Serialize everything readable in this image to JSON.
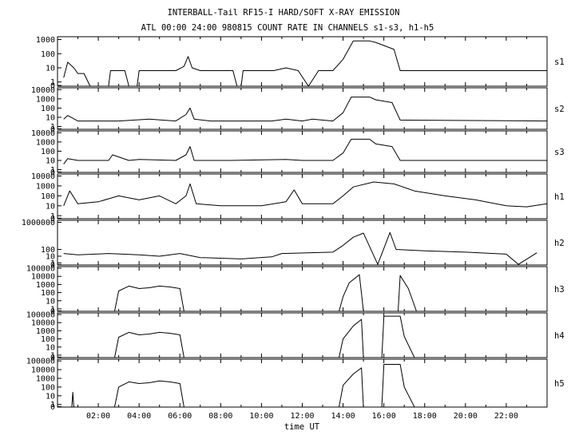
{
  "chart_data": {
    "type": "line",
    "title": "INTERBALL-Tail RF15-I HARD/SOFT X-RAY EMISSION",
    "subtitle": "ATL 00:00 24:00 980815  COUNT RATE IN CHANNELS s1-s3, h1-h5",
    "xlabel": "time UT",
    "xlim": [
      0,
      24
    ],
    "xticks": [
      "02:00",
      "04:00",
      "06:00",
      "08:00",
      "10:00",
      "12:00",
      "14:00",
      "16:00",
      "18:00",
      "20:00",
      "22:00"
    ],
    "y_scale": "log",
    "panels": [
      {
        "name": "s1",
        "ylim_exp": [
          -0.3,
          3.2
        ],
        "yticks": [
          "1000",
          "100",
          "10",
          "1",
          "0"
        ],
        "ytick_exp": [
          3,
          2,
          1,
          0,
          -0.25
        ],
        "series": [
          [
            0.3,
            0.3
          ],
          [
            0.5,
            1.4
          ],
          [
            0.8,
            1.0
          ],
          [
            1.0,
            0.6
          ],
          [
            1.3,
            0.6
          ],
          [
            1.6,
            -1
          ],
          [
            2.5,
            -1
          ],
          [
            2.6,
            0.8
          ],
          [
            3.3,
            0.8
          ],
          [
            3.5,
            -1
          ],
          [
            3.9,
            -1
          ],
          [
            4.0,
            0.8
          ],
          [
            5.8,
            0.8
          ],
          [
            6.2,
            1.1
          ],
          [
            6.4,
            1.8
          ],
          [
            6.6,
            1.0
          ],
          [
            7.0,
            0.8
          ],
          [
            8.6,
            0.8
          ],
          [
            8.8,
            -1
          ],
          [
            9.0,
            -1
          ],
          [
            9.1,
            0.8
          ],
          [
            10.6,
            0.8
          ],
          [
            11.2,
            1.0
          ],
          [
            11.8,
            0.8
          ],
          [
            12.3,
            -1
          ],
          [
            12.8,
            0.8
          ],
          [
            13.5,
            0.8
          ],
          [
            14.0,
            1.6
          ],
          [
            14.5,
            2.9
          ],
          [
            15.3,
            2.9
          ],
          [
            15.6,
            2.8
          ],
          [
            16.5,
            2.3
          ],
          [
            16.8,
            0.8
          ],
          [
            24.0,
            0.8
          ]
        ]
      },
      {
        "name": "s2",
        "ylim_exp": [
          -0.3,
          4.2
        ],
        "yticks": [
          "10000",
          "1000",
          "100",
          "10",
          "1",
          "0"
        ],
        "ytick_exp": [
          4,
          3,
          2,
          1,
          0,
          -0.25
        ],
        "series": [
          [
            0.3,
            0.8
          ],
          [
            0.5,
            1.2
          ],
          [
            1.0,
            0.6
          ],
          [
            3.0,
            0.6
          ],
          [
            4.5,
            0.8
          ],
          [
            5.8,
            0.6
          ],
          [
            6.3,
            1.3
          ],
          [
            6.5,
            2.0
          ],
          [
            6.7,
            0.8
          ],
          [
            7.5,
            0.6
          ],
          [
            10.5,
            0.6
          ],
          [
            11.2,
            0.8
          ],
          [
            12.0,
            0.6
          ],
          [
            12.5,
            0.8
          ],
          [
            13.5,
            0.6
          ],
          [
            14.0,
            1.5
          ],
          [
            14.4,
            3.2
          ],
          [
            15.3,
            3.2
          ],
          [
            15.6,
            2.9
          ],
          [
            16.4,
            2.6
          ],
          [
            16.8,
            0.7
          ],
          [
            24.0,
            0.6
          ]
        ]
      },
      {
        "name": "s3",
        "ylim_exp": [
          -0.3,
          4.2
        ],
        "yticks": [
          "10000",
          "1000",
          "100",
          "10",
          "1",
          "0"
        ],
        "ytick_exp": [
          4,
          3,
          2,
          1,
          0,
          -0.25
        ],
        "series": [
          [
            0.3,
            0.6
          ],
          [
            0.5,
            1.2
          ],
          [
            1.0,
            1.0
          ],
          [
            2.5,
            1.0
          ],
          [
            2.7,
            1.6
          ],
          [
            3.5,
            1.0
          ],
          [
            4.0,
            1.1
          ],
          [
            5.8,
            1.0
          ],
          [
            6.3,
            1.6
          ],
          [
            6.5,
            2.5
          ],
          [
            6.7,
            1.0
          ],
          [
            8.5,
            1.0
          ],
          [
            11.2,
            1.1
          ],
          [
            12.0,
            1.0
          ],
          [
            13.5,
            1.0
          ],
          [
            14.0,
            1.8
          ],
          [
            14.4,
            3.3
          ],
          [
            15.3,
            3.3
          ],
          [
            15.6,
            2.8
          ],
          [
            16.4,
            2.5
          ],
          [
            16.8,
            1.0
          ],
          [
            24.0,
            1.0
          ]
        ]
      },
      {
        "name": "h1",
        "ylim_exp": [
          -0.3,
          4.2
        ],
        "yticks": [
          "10000",
          "1000",
          "100",
          "10",
          "1",
          "0"
        ],
        "ytick_exp": [
          4,
          3,
          2,
          1,
          0,
          -0.25
        ],
        "series": [
          [
            0.3,
            1.0
          ],
          [
            0.6,
            2.5
          ],
          [
            1.0,
            1.2
          ],
          [
            2.0,
            1.4
          ],
          [
            3.0,
            2.0
          ],
          [
            4.0,
            1.6
          ],
          [
            5.0,
            2.0
          ],
          [
            5.8,
            1.2
          ],
          [
            6.3,
            2.0
          ],
          [
            6.5,
            3.2
          ],
          [
            6.8,
            1.2
          ],
          [
            8.0,
            1.0
          ],
          [
            10.0,
            1.0
          ],
          [
            11.2,
            1.4
          ],
          [
            11.6,
            2.6
          ],
          [
            12.0,
            1.2
          ],
          [
            13.5,
            1.2
          ],
          [
            14.0,
            2.0
          ],
          [
            14.5,
            2.9
          ],
          [
            15.5,
            3.4
          ],
          [
            16.5,
            3.2
          ],
          [
            17.5,
            2.5
          ],
          [
            19.0,
            2.0
          ],
          [
            20.5,
            1.6
          ],
          [
            22.0,
            1.0
          ],
          [
            23.0,
            0.9
          ],
          [
            24.0,
            1.2
          ]
        ]
      },
      {
        "name": "h2",
        "ylim_exp": [
          -0.3,
          6.3
        ],
        "yticks": [
          "1000000",
          "100",
          "10",
          "1",
          "0"
        ],
        "ytick_exp": [
          6,
          2,
          1,
          0,
          -0.25
        ],
        "series": [
          [
            0.3,
            1.4
          ],
          [
            1.0,
            1.2
          ],
          [
            2.5,
            1.4
          ],
          [
            4.0,
            1.2
          ],
          [
            5.0,
            1.0
          ],
          [
            6.0,
            1.4
          ],
          [
            7.0,
            0.8
          ],
          [
            9.0,
            0.6
          ],
          [
            10.5,
            0.9
          ],
          [
            11.0,
            1.4
          ],
          [
            13.5,
            1.6
          ],
          [
            14.0,
            2.6
          ],
          [
            14.5,
            3.8
          ],
          [
            15.0,
            4.4
          ],
          [
            15.7,
            -0.2
          ],
          [
            16.3,
            4.5
          ],
          [
            16.6,
            2.0
          ],
          [
            18.0,
            1.8
          ],
          [
            20.0,
            1.6
          ],
          [
            22.0,
            1.3
          ],
          [
            22.6,
            -0.2
          ],
          [
            23.5,
            1.5
          ]
        ]
      },
      {
        "name": "h3",
        "ylim_exp": [
          -0.3,
          5.2
        ],
        "yticks": [
          "100000",
          "10000",
          "1000",
          "100",
          "10",
          "1",
          "0"
        ],
        "ytick_exp": [
          5,
          4,
          3,
          2,
          1,
          0,
          -0.25
        ],
        "series": [
          [
            2.8,
            -0.3
          ],
          [
            3.0,
            2.2
          ],
          [
            3.5,
            2.8
          ],
          [
            4.0,
            2.5
          ],
          [
            4.5,
            2.6
          ],
          [
            5.0,
            2.8
          ],
          [
            5.5,
            2.7
          ],
          [
            6.0,
            2.5
          ],
          [
            6.2,
            -0.3
          ],
          [
            13.8,
            -0.3
          ],
          [
            14.0,
            1.5
          ],
          [
            14.3,
            3.2
          ],
          [
            14.8,
            4.2
          ],
          [
            15.0,
            -0.3
          ],
          [
            16.7,
            -0.3
          ],
          [
            16.8,
            4.1
          ],
          [
            17.2,
            2.5
          ],
          [
            17.6,
            -0.3
          ]
        ]
      },
      {
        "name": "h4",
        "ylim_exp": [
          -0.3,
          5.2
        ],
        "yticks": [
          "100000",
          "10000",
          "1000",
          "100",
          "10",
          "1",
          "0"
        ],
        "ytick_exp": [
          5,
          4,
          3,
          2,
          1,
          0,
          -0.25
        ],
        "series": [
          [
            2.8,
            -0.3
          ],
          [
            3.0,
            2.2
          ],
          [
            3.5,
            2.8
          ],
          [
            4.0,
            2.5
          ],
          [
            4.5,
            2.6
          ],
          [
            5.0,
            2.8
          ],
          [
            5.5,
            2.7
          ],
          [
            6.0,
            2.5
          ],
          [
            6.2,
            -0.3
          ],
          [
            13.8,
            -0.3
          ],
          [
            14.0,
            2.0
          ],
          [
            14.5,
            3.6
          ],
          [
            14.9,
            4.4
          ],
          [
            15.0,
            -0.3
          ],
          [
            15.9,
            -0.3
          ],
          [
            16.0,
            4.8
          ],
          [
            16.8,
            4.8
          ],
          [
            17.0,
            2.3
          ],
          [
            17.5,
            -0.3
          ]
        ]
      },
      {
        "name": "h5",
        "ylim_exp": [
          -0.3,
          5.2
        ],
        "yticks": [
          "100000",
          "10000",
          "1000",
          "100",
          "10",
          "1",
          "0"
        ],
        "ytick_exp": [
          5,
          4,
          3,
          2,
          1,
          0,
          -0.25
        ],
        "series": [
          [
            0.7,
            -0.3
          ],
          [
            0.75,
            1.4
          ],
          [
            0.8,
            -0.3
          ],
          [
            2.8,
            -0.3
          ],
          [
            3.0,
            2.0
          ],
          [
            3.5,
            2.6
          ],
          [
            4.0,
            2.4
          ],
          [
            4.5,
            2.5
          ],
          [
            5.0,
            2.7
          ],
          [
            5.5,
            2.6
          ],
          [
            6.0,
            2.4
          ],
          [
            6.2,
            -0.3
          ],
          [
            13.8,
            -0.3
          ],
          [
            14.0,
            2.2
          ],
          [
            14.5,
            3.5
          ],
          [
            14.9,
            4.2
          ],
          [
            15.0,
            -0.3
          ],
          [
            15.9,
            -0.3
          ],
          [
            16.0,
            4.6
          ],
          [
            16.8,
            4.6
          ],
          [
            17.0,
            2.0
          ],
          [
            17.5,
            -0.3
          ]
        ]
      }
    ]
  }
}
